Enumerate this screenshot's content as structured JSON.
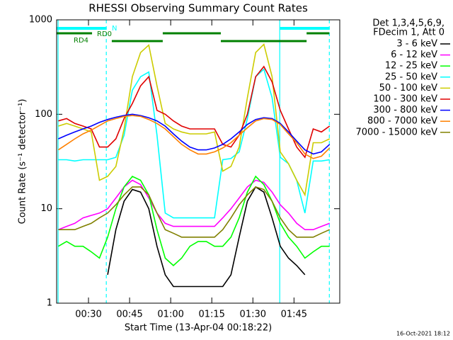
{
  "chart_data": {
    "type": "line",
    "title": "RHESSI Observing Summary Count Rates",
    "x_label": "Start Time (13-Apr-04 00:18:22)",
    "y_label": "Count Rate (s⁻¹ detector⁻¹)",
    "legend_title": [
      "Det 1,3,4,5,6,9,",
      "FDecim 1, Att 0"
    ],
    "footer": "16-Oct-2021 18:12",
    "log_y": true,
    "xlim": [
      18.37,
      121.7
    ],
    "ylim": [
      1,
      1000
    ],
    "xticks": [
      {
        "value": 30,
        "label": "00:30"
      },
      {
        "value": 45,
        "label": "00:45"
      },
      {
        "value": 60,
        "label": "01:00"
      },
      {
        "value": 75,
        "label": "01:15"
      },
      {
        "value": 90,
        "label": "01:30"
      },
      {
        "value": 105,
        "label": "01:45"
      }
    ],
    "yticks": [
      1,
      10,
      100,
      1000
    ],
    "flags": [
      {
        "label": "N",
        "color": "#00ffff",
        "intervals": [
          [
            18.4,
            36.5
          ],
          [
            99.8,
            117.9
          ]
        ]
      },
      {
        "label": "RD0",
        "color": "#008000",
        "intervals": [
          [
            18.4,
            31.3
          ],
          [
            57.1,
            78.3
          ],
          [
            109.6,
            117.9
          ]
        ]
      },
      {
        "label": "RD4",
        "color": "#008000",
        "intervals": [
          [
            38.5,
            57.1
          ],
          [
            78.3,
            109.6
          ]
        ]
      }
    ],
    "vlines": [
      {
        "x": 18.9,
        "style": "solid",
        "color": "#00ffff"
      },
      {
        "x": 36.5,
        "style": "dashed",
        "color": "#00ffff"
      },
      {
        "x": 99.8,
        "style": "solid",
        "color": "#00ffff"
      },
      {
        "x": 117.9,
        "style": "dashed",
        "color": "#00ffff"
      }
    ],
    "x": [
      19,
      22,
      25,
      28,
      31,
      34,
      37,
      40,
      43,
      46,
      49,
      52,
      55,
      58,
      61,
      64,
      67,
      70,
      73,
      76,
      79,
      82,
      85,
      88,
      91,
      94,
      97,
      100,
      103,
      106,
      109,
      112,
      115,
      118
    ],
    "series": [
      {
        "name": "3 - 6 keV",
        "color": "#000000",
        "values": [
          null,
          null,
          null,
          null,
          null,
          null,
          2,
          6,
          12,
          16,
          15,
          10,
          4,
          2,
          1.5,
          1.5,
          1.5,
          1.5,
          1.5,
          1.5,
          1.5,
          2,
          5,
          12,
          17,
          15,
          8,
          4,
          3,
          2.5,
          2,
          null,
          null,
          null
        ]
      },
      {
        "name": "6 - 12 keV",
        "color": "#ff00ff",
        "values": [
          6,
          6.5,
          7,
          8,
          8.5,
          9,
          10,
          13,
          17,
          20,
          18,
          13,
          9,
          7,
          6.5,
          6.5,
          6.5,
          6.5,
          6.5,
          6.5,
          8,
          10,
          13,
          17,
          20,
          19,
          15,
          11,
          9,
          7,
          6,
          6,
          6.5,
          7
        ]
      },
      {
        "name": "12 - 25 keV",
        "color": "#00ff00",
        "values": [
          4,
          4.5,
          4,
          4,
          3.5,
          3,
          5,
          10,
          17,
          22,
          20,
          14,
          6,
          3,
          2.5,
          3,
          4,
          4.5,
          4.5,
          4,
          4,
          5,
          8,
          15,
          22,
          18,
          12,
          7,
          5,
          4,
          3,
          3.5,
          4,
          4
        ]
      },
      {
        "name": "25 - 50 keV",
        "color": "#00ffff",
        "values": [
          33,
          33,
          32,
          33,
          33,
          33,
          33,
          35,
          60,
          180,
          250,
          280,
          60,
          9,
          8,
          8,
          8,
          8,
          8,
          8,
          33,
          34,
          40,
          90,
          250,
          300,
          150,
          35,
          30,
          20,
          9,
          32,
          32,
          33
        ]
      },
      {
        "name": "50 - 100 keV",
        "color": "#cccc00",
        "values": [
          75,
          80,
          75,
          70,
          65,
          20,
          22,
          28,
          70,
          250,
          450,
          540,
          200,
          80,
          70,
          65,
          62,
          62,
          62,
          65,
          25,
          28,
          45,
          150,
          450,
          550,
          250,
          40,
          30,
          20,
          14,
          50,
          50,
          55
        ]
      },
      {
        "name": "100 - 300 keV",
        "color": "#e00000",
        "values": [
          85,
          90,
          80,
          75,
          70,
          45,
          45,
          55,
          90,
          130,
          200,
          250,
          110,
          100,
          85,
          75,
          70,
          70,
          70,
          70,
          48,
          45,
          60,
          100,
          250,
          320,
          220,
          110,
          70,
          45,
          35,
          70,
          65,
          75
        ]
      },
      {
        "name": "300 - 800 keV",
        "color": "#0000ff",
        "values": [
          55,
          60,
          65,
          70,
          75,
          82,
          88,
          93,
          97,
          100,
          97,
          92,
          85,
          75,
          62,
          52,
          45,
          42,
          42,
          44,
          48,
          55,
          65,
          78,
          88,
          92,
          90,
          80,
          65,
          52,
          42,
          38,
          40,
          48
        ]
      },
      {
        "name": "800 - 7000 keV",
        "color": "#ff8000",
        "values": [
          42,
          48,
          55,
          62,
          68,
          76,
          85,
          90,
          95,
          97,
          95,
          88,
          80,
          70,
          58,
          48,
          42,
          38,
          38,
          40,
          44,
          50,
          60,
          72,
          85,
          90,
          88,
          78,
          62,
          50,
          38,
          34,
          36,
          44
        ]
      },
      {
        "name": "7000 - 15000 keV",
        "color": "#808000",
        "values": [
          6,
          6,
          6,
          6.5,
          7,
          8,
          9,
          11,
          14,
          17,
          17,
          14,
          9,
          6,
          5.5,
          5,
          5,
          5,
          5,
          5,
          6,
          8,
          11,
          14,
          17,
          16,
          12,
          8,
          6,
          5,
          5,
          5,
          5.5,
          6
        ]
      }
    ]
  }
}
